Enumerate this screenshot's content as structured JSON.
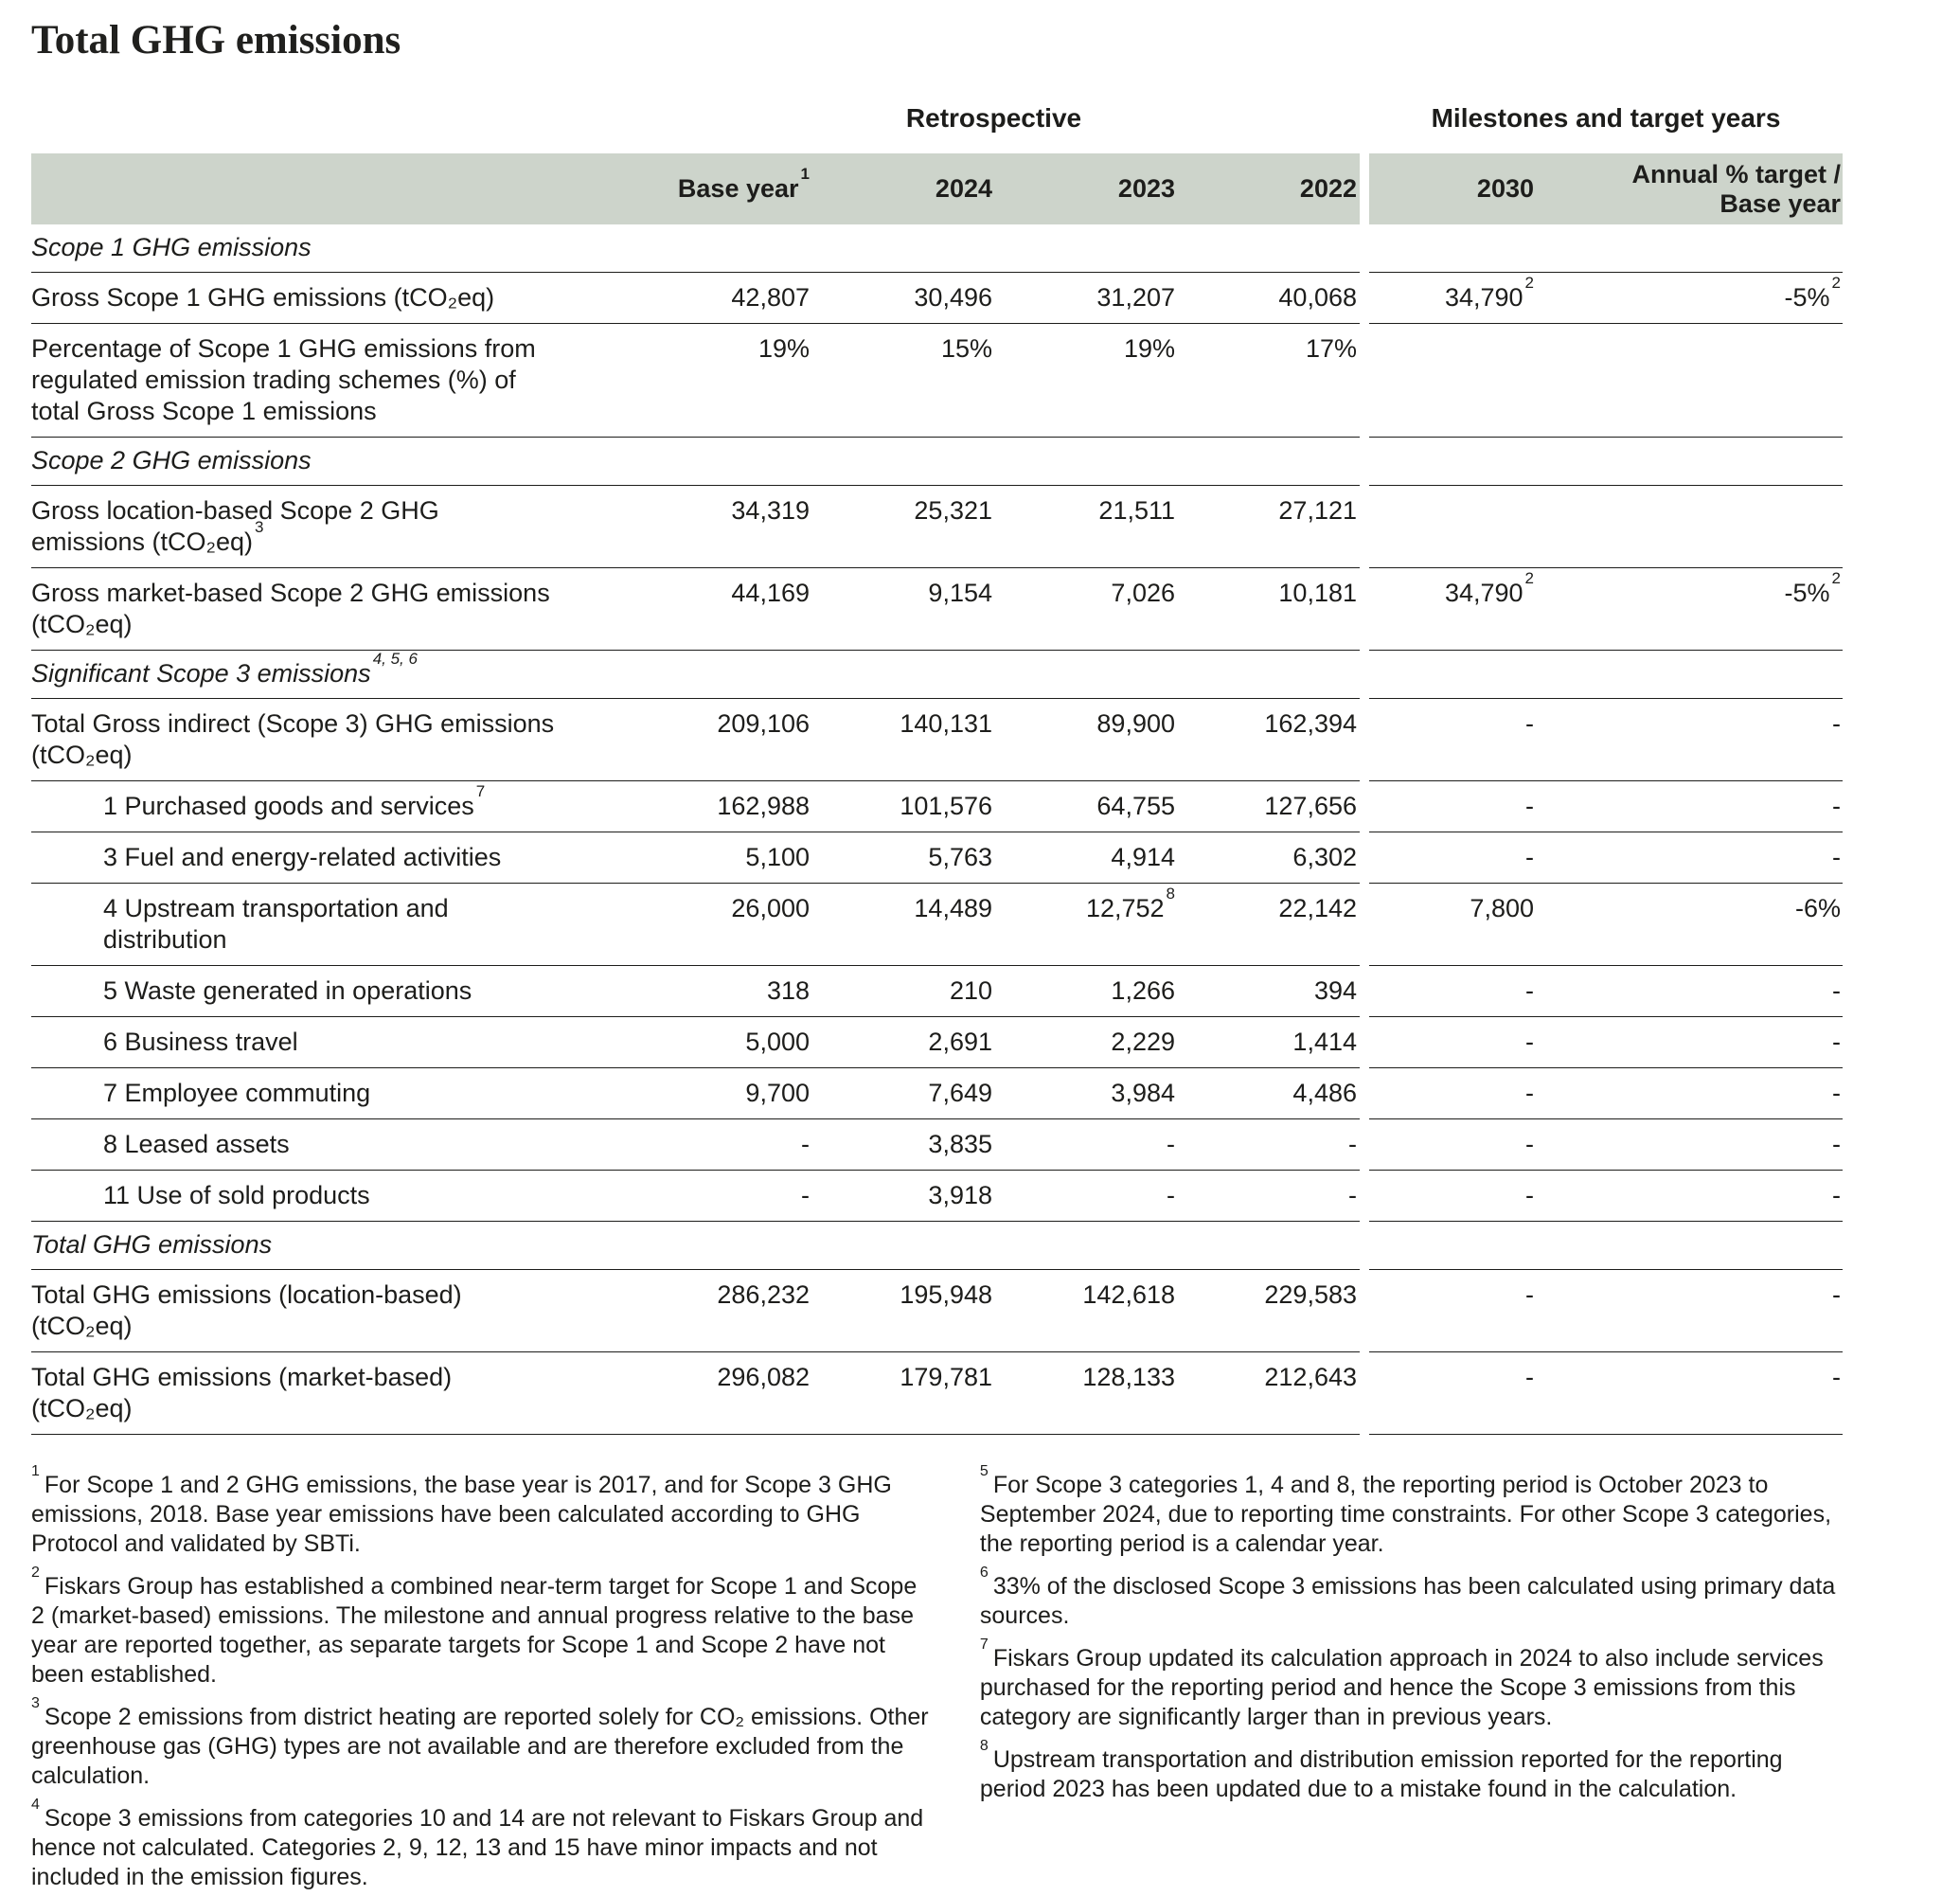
{
  "title": "Total GHG emissions",
  "colors": {
    "header_band": "#cdd4cb",
    "text": "#1d1d1b",
    "rule": "#1d1d1b"
  },
  "table": {
    "group_headers": {
      "retrospective": "Retrospective",
      "milestones": "Milestones and target years"
    },
    "columns": {
      "base_year": {
        "text": "Base year",
        "sup": "1"
      },
      "col_2024": {
        "text": "2024"
      },
      "col_2023": {
        "text": "2023"
      },
      "col_2022": {
        "text": "2022"
      },
      "col_2030": {
        "text": "2030"
      },
      "annual_target_line1": "Annual % target /",
      "annual_target_line2": "Base year"
    },
    "rows": [
      {
        "type": "section",
        "label": {
          "text": "Scope 1 GHG emissions"
        }
      },
      {
        "type": "data",
        "label": {
          "text": "Gross Scope 1 GHG emissions (tCO₂eq)"
        },
        "cells": [
          {
            "text": "42,807"
          },
          {
            "text": "30,496"
          },
          {
            "text": "31,207"
          },
          {
            "text": "40,068"
          },
          {
            "text": "34,790",
            "sup": "2"
          },
          {
            "text": "-5%",
            "sup": "2"
          }
        ]
      },
      {
        "type": "data",
        "label": {
          "text": "Percentage of Scope 1 GHG emissions from regulated emission trading schemes (%) of total Gross Scope 1 emissions"
        },
        "cells": [
          {
            "text": "19%"
          },
          {
            "text": "15%"
          },
          {
            "text": "19%"
          },
          {
            "text": "17%"
          },
          {
            "text": ""
          },
          {
            "text": ""
          }
        ]
      },
      {
        "type": "section",
        "label": {
          "text": "Scope 2 GHG emissions"
        }
      },
      {
        "type": "data",
        "label": {
          "text": "Gross location-based Scope 2 GHG emissions (tCO₂eq)",
          "sup": "3"
        },
        "cells": [
          {
            "text": "34,319"
          },
          {
            "text": "25,321"
          },
          {
            "text": "21,511"
          },
          {
            "text": "27,121"
          },
          {
            "text": ""
          },
          {
            "text": ""
          }
        ]
      },
      {
        "type": "data",
        "label": {
          "text": "Gross market-based Scope 2 GHG emissions (tCO₂eq)"
        },
        "cells": [
          {
            "text": "44,169"
          },
          {
            "text": "9,154"
          },
          {
            "text": "7,026"
          },
          {
            "text": "10,181"
          },
          {
            "text": "34,790",
            "sup": "2"
          },
          {
            "text": "-5%",
            "sup": "2"
          }
        ]
      },
      {
        "type": "section",
        "label": {
          "text": "Significant Scope 3 emissions",
          "sup": "4, 5, 6"
        }
      },
      {
        "type": "data",
        "label": {
          "text": "Total Gross indirect (Scope 3) GHG emissions (tCO₂eq)"
        },
        "cells": [
          {
            "text": "209,106"
          },
          {
            "text": "140,131"
          },
          {
            "text": "89,900"
          },
          {
            "text": "162,394"
          },
          {
            "text": "-"
          },
          {
            "text": "-"
          }
        ]
      },
      {
        "type": "data",
        "indent": true,
        "label": {
          "text": "1 Purchased goods and services",
          "sup": "7"
        },
        "cells": [
          {
            "text": "162,988"
          },
          {
            "text": "101,576"
          },
          {
            "text": "64,755"
          },
          {
            "text": "127,656"
          },
          {
            "text": "-"
          },
          {
            "text": "-"
          }
        ]
      },
      {
        "type": "data",
        "indent": true,
        "label": {
          "text": "3 Fuel and energy-related activities"
        },
        "cells": [
          {
            "text": "5,100"
          },
          {
            "text": "5,763"
          },
          {
            "text": "4,914"
          },
          {
            "text": "6,302"
          },
          {
            "text": "-"
          },
          {
            "text": "-"
          }
        ]
      },
      {
        "type": "data",
        "indent": true,
        "label": {
          "text": "4 Upstream transportation and distribution"
        },
        "cells": [
          {
            "text": "26,000"
          },
          {
            "text": "14,489"
          },
          {
            "text": "12,752",
            "sup": "8"
          },
          {
            "text": "22,142"
          },
          {
            "text": "7,800"
          },
          {
            "text": "-6%"
          }
        ]
      },
      {
        "type": "data",
        "indent": true,
        "label": {
          "text": "5 Waste generated in operations"
        },
        "cells": [
          {
            "text": "318"
          },
          {
            "text": "210"
          },
          {
            "text": "1,266"
          },
          {
            "text": "394"
          },
          {
            "text": "-"
          },
          {
            "text": "-"
          }
        ]
      },
      {
        "type": "data",
        "indent": true,
        "label": {
          "text": "6 Business travel"
        },
        "cells": [
          {
            "text": "5,000"
          },
          {
            "text": "2,691"
          },
          {
            "text": "2,229"
          },
          {
            "text": "1,414"
          },
          {
            "text": "-"
          },
          {
            "text": "-"
          }
        ]
      },
      {
        "type": "data",
        "indent": true,
        "label": {
          "text": "7 Employee commuting"
        },
        "cells": [
          {
            "text": "9,700"
          },
          {
            "text": "7,649"
          },
          {
            "text": "3,984"
          },
          {
            "text": "4,486"
          },
          {
            "text": "-"
          },
          {
            "text": "-"
          }
        ]
      },
      {
        "type": "data",
        "indent": true,
        "label": {
          "text": "8 Leased assets"
        },
        "cells": [
          {
            "text": "-"
          },
          {
            "text": "3,835"
          },
          {
            "text": "-"
          },
          {
            "text": "-"
          },
          {
            "text": "-"
          },
          {
            "text": "-"
          }
        ]
      },
      {
        "type": "data",
        "indent": true,
        "label": {
          "text": "11 Use of sold products"
        },
        "cells": [
          {
            "text": "-"
          },
          {
            "text": "3,918"
          },
          {
            "text": "-"
          },
          {
            "text": "-"
          },
          {
            "text": "-"
          },
          {
            "text": "-"
          }
        ]
      },
      {
        "type": "section",
        "label": {
          "text": "Total GHG emissions"
        }
      },
      {
        "type": "data",
        "label": {
          "text": "Total GHG emissions (location-based) (tCO₂eq)"
        },
        "cells": [
          {
            "text": "286,232"
          },
          {
            "text": "195,948"
          },
          {
            "text": "142,618"
          },
          {
            "text": "229,583"
          },
          {
            "text": "-"
          },
          {
            "text": "-"
          }
        ]
      },
      {
        "type": "data",
        "label": {
          "text": "Total GHG emissions (market-based) (tCO₂eq)"
        },
        "cells": [
          {
            "text": "296,082"
          },
          {
            "text": "179,781"
          },
          {
            "text": "128,133"
          },
          {
            "text": "212,643"
          },
          {
            "text": "-"
          },
          {
            "text": "-"
          }
        ]
      }
    ]
  },
  "footnotes": {
    "left": [
      {
        "marker": "1",
        "text": "For Scope 1 and 2 GHG emissions, the base year is 2017, and for Scope 3 GHG emissions, 2018. Base year emissions have been calculated according to GHG Protocol and validated by SBTi."
      },
      {
        "marker": "2",
        "text": "Fiskars Group has established a combined near-term target for Scope 1 and Scope 2 (market-based) emissions. The milestone and annual progress relative to the base year are reported together, as separate targets for Scope 1 and Scope 2 have not been established."
      },
      {
        "marker": "3",
        "text": "Scope 2 emissions from district heating are reported solely for CO₂ emissions. Other greenhouse gas (GHG) types are not available and are therefore excluded from the calculation."
      },
      {
        "marker": "4",
        "text": "Scope 3 emissions from categories 10 and 14 are not relevant to Fiskars Group and hence not calculated. Categories 2, 9, 12, 13 and 15 have minor impacts and not included in the emission figures."
      }
    ],
    "right": [
      {
        "marker": "5",
        "text": "For Scope 3 categories 1, 4 and 8, the reporting period is October 2023 to September 2024, due to reporting time constraints. For other Scope 3 categories, the reporting period is a calendar year."
      },
      {
        "marker": "6",
        "text": "33% of the disclosed Scope 3 emissions has been calculated using primary data sources."
      },
      {
        "marker": "7",
        "text": "Fiskars Group updated its calculation approach in 2024 to also include services purchased for the reporting period and hence the Scope 3 emissions from this category are significantly larger than in previous years."
      },
      {
        "marker": "8",
        "text": "Upstream transportation and distribution emission reported for the reporting period 2023 has been updated due to a mistake found in the calculation."
      }
    ]
  }
}
